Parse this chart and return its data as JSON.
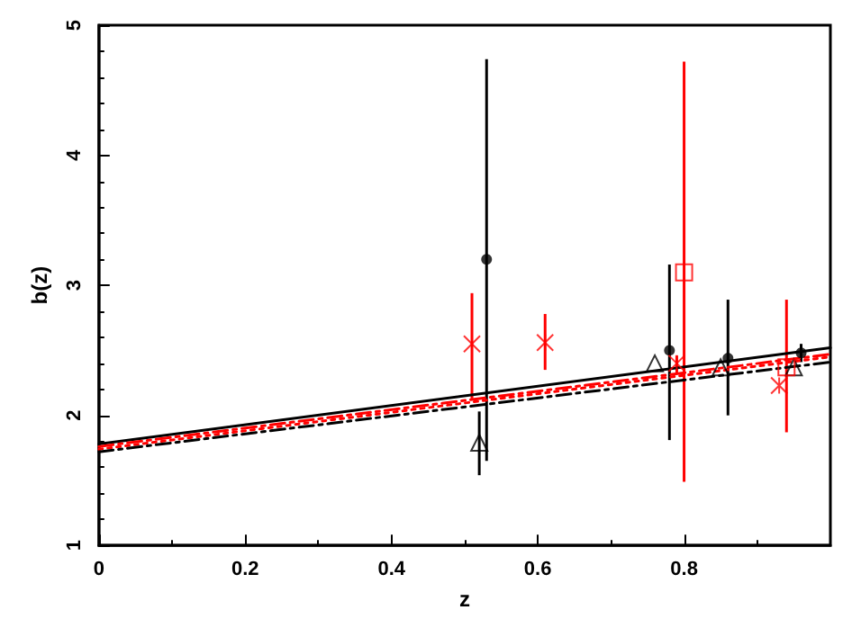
{
  "chart_data": {
    "type": "scatter",
    "xlabel": "z",
    "ylabel": "b(z)",
    "xlim": [
      0,
      1
    ],
    "ylim": [
      1,
      5
    ],
    "xticks": [
      0,
      0.2,
      0.4,
      0.6,
      0.8
    ],
    "yticks": [
      1,
      2,
      3,
      4,
      5
    ],
    "grid": false,
    "series": [
      {
        "type": "line",
        "color": "#000000",
        "line_style": "solid",
        "marker": "none",
        "x": [
          0,
          1
        ],
        "values": [
          1.78,
          2.52
        ]
      },
      {
        "type": "line",
        "color": "#ff0000",
        "line_style": "dashed",
        "marker": "none",
        "x": [
          0,
          1
        ],
        "values": [
          1.76,
          2.47
        ]
      },
      {
        "type": "line",
        "color": "#ff0000",
        "line_style": "dotted",
        "marker": "none",
        "x": [
          0,
          1
        ],
        "values": [
          1.74,
          2.45
        ]
      },
      {
        "type": "line",
        "color": "#000000",
        "line_style": "dashed",
        "marker": "none",
        "x": [
          0,
          1
        ],
        "values": [
          1.72,
          2.41
        ]
      },
      {
        "color": "#000000",
        "marker": "circle",
        "x": [
          0.53,
          0.78,
          0.86,
          0.96
        ],
        "values": [
          3.2,
          2.5,
          2.44,
          2.48
        ],
        "errors": [
          [
            1.65,
            4.74
          ],
          [
            1.81,
            3.16
          ],
          [
            2.0,
            2.89
          ],
          [
            2.41,
            2.55
          ]
        ]
      },
      {
        "color": "#000000",
        "marker": "triangle",
        "x": [
          0.52,
          0.76,
          0.85,
          0.95
        ],
        "values": [
          1.79,
          2.4,
          2.37,
          2.37
        ],
        "errors": [
          [
            1.54,
            2.03
          ],
          null,
          null,
          null
        ]
      },
      {
        "color": "#ff0000",
        "marker": "cross",
        "x": [
          0.51,
          0.61,
          0.79,
          0.93
        ],
        "values": [
          2.55,
          2.56,
          2.4,
          2.23
        ],
        "errors": [
          [
            2.13,
            2.94
          ],
          [
            2.35,
            2.78
          ],
          [
            2.33,
            2.46
          ],
          null
        ]
      },
      {
        "color": "#ff0000",
        "marker": "square",
        "x": [
          0.8,
          0.94
        ],
        "values": [
          3.1,
          2.37
        ],
        "errors": [
          [
            1.49,
            4.72
          ],
          [
            1.87,
            2.89
          ]
        ]
      }
    ]
  }
}
